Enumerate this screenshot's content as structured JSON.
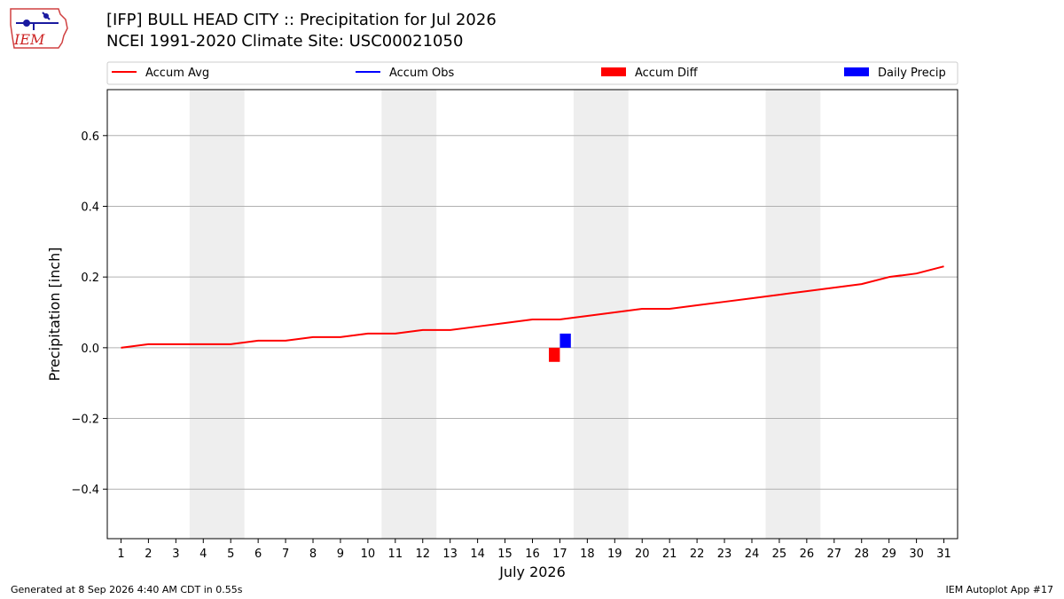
{
  "header": {
    "title": "[IFP] BULL HEAD CITY :: Precipitation for Jul 2026",
    "subtitle": "NCEI 1991-2020 Climate Site: USC00021050"
  },
  "logo": {
    "text": "IEM"
  },
  "footer": {
    "left": "Generated at 8 Sep 2026 4:40 AM CDT in 0.55s",
    "right": "IEM Autoplot App #17"
  },
  "colors": {
    "accum_avg": "#ff0000",
    "accum_obs": "#0000ff",
    "accum_diff": "#ff0000",
    "daily_precip": "#0000ff",
    "weekend_shade": "#eeeeee",
    "grid": "#b0b0b0"
  },
  "chart_data": {
    "type": "line",
    "xlabel": "July 2026",
    "ylabel": "Precipitation [inch]",
    "xlim": [
      0.5,
      31.5
    ],
    "ylim": [
      -0.54,
      0.73
    ],
    "x_ticks": [
      1,
      2,
      3,
      4,
      5,
      6,
      7,
      8,
      9,
      10,
      11,
      12,
      13,
      14,
      15,
      16,
      17,
      18,
      19,
      20,
      21,
      22,
      23,
      24,
      25,
      26,
      27,
      28,
      29,
      30,
      31
    ],
    "y_ticks": [
      -0.4,
      -0.2,
      0.0,
      0.2,
      0.4,
      0.6
    ],
    "y_tick_labels": [
      "−0.4",
      "−0.2",
      "0.0",
      "0.2",
      "0.4",
      "0.6"
    ],
    "grid": "horizontal",
    "legend_position": "top",
    "legend": [
      "Accum Avg",
      "Accum Obs",
      "Accum Diff",
      "Daily Precip"
    ],
    "weekend_shading": [
      [
        3.5,
        5.5
      ],
      [
        10.5,
        12.5
      ],
      [
        17.5,
        19.5
      ],
      [
        24.5,
        26.5
      ]
    ],
    "series": [
      {
        "name": "Accum Avg",
        "kind": "line",
        "x": [
          1,
          2,
          3,
          4,
          5,
          6,
          7,
          8,
          9,
          10,
          11,
          12,
          13,
          14,
          15,
          16,
          17,
          18,
          19,
          20,
          21,
          22,
          23,
          24,
          25,
          26,
          27,
          28,
          29,
          30,
          31
        ],
        "values": [
          0.0,
          0.01,
          0.01,
          0.01,
          0.01,
          0.02,
          0.02,
          0.03,
          0.03,
          0.04,
          0.04,
          0.05,
          0.05,
          0.06,
          0.07,
          0.08,
          0.08,
          0.09,
          0.1,
          0.11,
          0.11,
          0.12,
          0.13,
          0.14,
          0.15,
          0.16,
          0.17,
          0.18,
          0.2,
          0.21,
          0.23
        ]
      },
      {
        "name": "Accum Obs",
        "kind": "line",
        "x": [],
        "values": []
      },
      {
        "name": "Accum Diff",
        "kind": "bar",
        "x": [
          17
        ],
        "values": [
          -0.04
        ]
      },
      {
        "name": "Daily Precip",
        "kind": "bar",
        "x": [
          17
        ],
        "values": [
          0.04
        ]
      }
    ]
  }
}
